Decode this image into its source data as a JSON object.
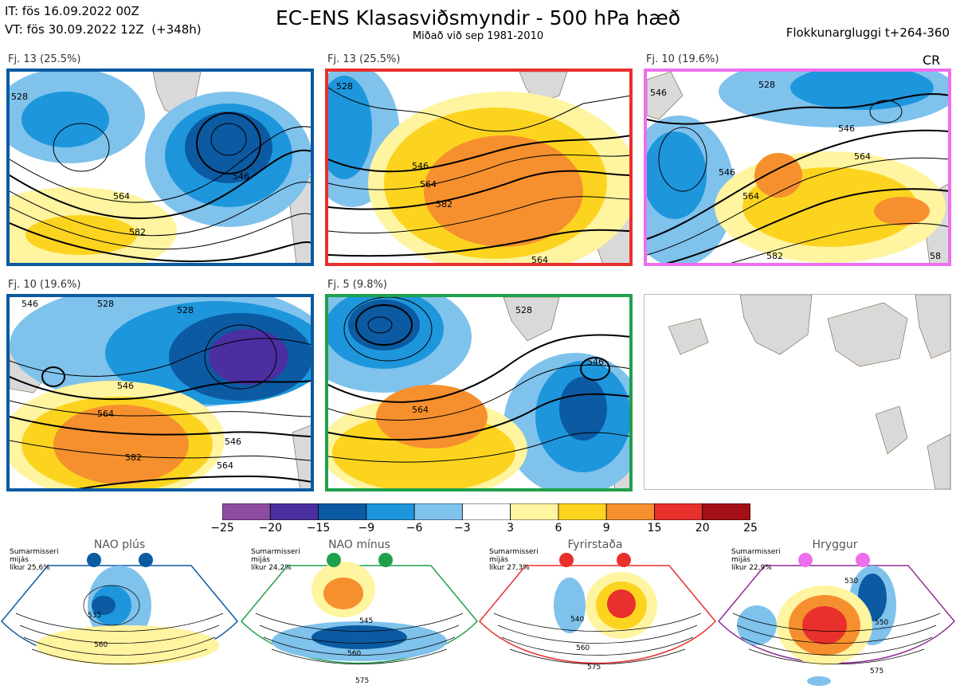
{
  "header": {
    "it": "IT: fös 16.09.2022 00Z",
    "vt": "VT: fös 30.09.2022 12Z  (+348h)",
    "title": "EC-ENS Klasasviðsmyndir - 500 hPa hæð",
    "subtitle": "Miðað við sep 1981-2010",
    "window": "Flokkunargluggi t+264-360"
  },
  "panels": [
    {
      "label": "Fj. 13 (25.5%)",
      "border": "#0b5aa2",
      "contours": [
        "528",
        "546",
        "564",
        "582"
      ]
    },
    {
      "label": "Fj. 13 (25.5%)",
      "border": "#e8302d",
      "contours": [
        "528",
        "546",
        "564",
        "582",
        "564"
      ]
    },
    {
      "label": "Fj. 10 (19.6%)",
      "border": "#ee6fee",
      "tag": "CR",
      "contours": [
        "528",
        "546",
        "546",
        "564",
        "546",
        "564",
        "582",
        "58"
      ]
    },
    {
      "label": "Fj. 10 (19.6%)",
      "border": "#0b5aa2",
      "contours": [
        "546",
        "528",
        "528",
        "546",
        "564",
        "546",
        "582",
        "564"
      ]
    },
    {
      "label": "Fj. 5 (9.8%)",
      "border": "#1fa04b",
      "contours": [
        "528",
        "546",
        "564"
      ]
    },
    {
      "label": "",
      "border": "#cccccc"
    }
  ],
  "colorbar": {
    "ticks": [
      "−25",
      "−20",
      "−15",
      "−9",
      "−6",
      "−3",
      "3",
      "6",
      "9",
      "15",
      "20",
      "25"
    ],
    "colors": [
      "#8e4ca0",
      "#4b2fa0",
      "#0b5aa2",
      "#1e96dc",
      "#7fc2ec",
      "#ffffff",
      "#fff4a0",
      "#fcd420",
      "#f6902e",
      "#e8302d",
      "#a30f15"
    ]
  },
  "regimes": [
    {
      "name": "NAO plús",
      "info": "Sumarmisseri\nmijás\nlíkur 25,6%",
      "color": "#0b5aa2",
      "contours": [
        "535",
        "560"
      ]
    },
    {
      "name": "NAO mínus",
      "info": "Sumarmisseri\nmijás\nlíkur 24,2%",
      "color": "#1fa04b",
      "contours": [
        "545",
        "560",
        "575"
      ]
    },
    {
      "name": "Fyrirstaða",
      "info": "Sumarmisseri\nmijás\nlíkur 27,3%",
      "color": "#e8302d",
      "contours": [
        "540",
        "560",
        "575"
      ]
    },
    {
      "name": "Hryggur",
      "info": "Sumarmisseri\nmijás\nlíkur 22,9%",
      "color": "#ee6fee",
      "contours": [
        "530",
        "550",
        "575"
      ]
    }
  ]
}
